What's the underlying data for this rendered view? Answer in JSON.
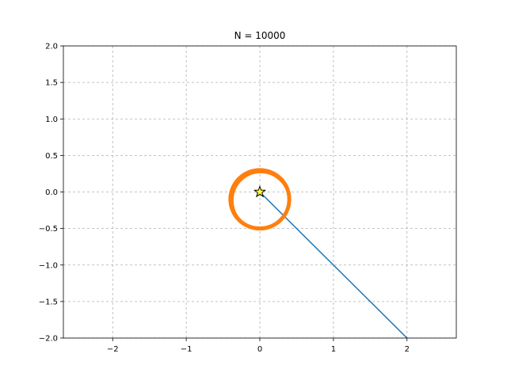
{
  "chart_data": {
    "type": "line",
    "title": "N = 10000",
    "xlabel": "",
    "ylabel": "",
    "xlim": [
      -2.67,
      2.67
    ],
    "ylim": [
      -2.0,
      2.0
    ],
    "xticks": [
      -2,
      -1,
      0,
      1,
      2
    ],
    "xtick_labels": [
      "−2",
      "−1",
      "0",
      "1",
      "2"
    ],
    "yticks": [
      -2.0,
      -1.5,
      -1.0,
      -0.5,
      0.0,
      0.5,
      1.0,
      1.5,
      2.0
    ],
    "ytick_labels": [
      "−2.0",
      "−1.5",
      "−1.0",
      "−0.5",
      "0.0",
      "0.5",
      "1.0",
      "1.5",
      "2.0"
    ],
    "grid": true,
    "series": [
      {
        "kind": "line",
        "color": "#1f77b4",
        "x": [
          0.0,
          2.0
        ],
        "y": [
          0.0,
          -2.0
        ]
      },
      {
        "kind": "ring",
        "color": "#ff7f0e",
        "center": [
          0.0,
          -0.1
        ],
        "rx": 0.4,
        "ry": 0.4
      },
      {
        "kind": "marker",
        "marker": "star",
        "color": "#ffff33",
        "edgecolor": "#000000",
        "x": [
          0.0
        ],
        "y": [
          0.0
        ]
      }
    ]
  }
}
